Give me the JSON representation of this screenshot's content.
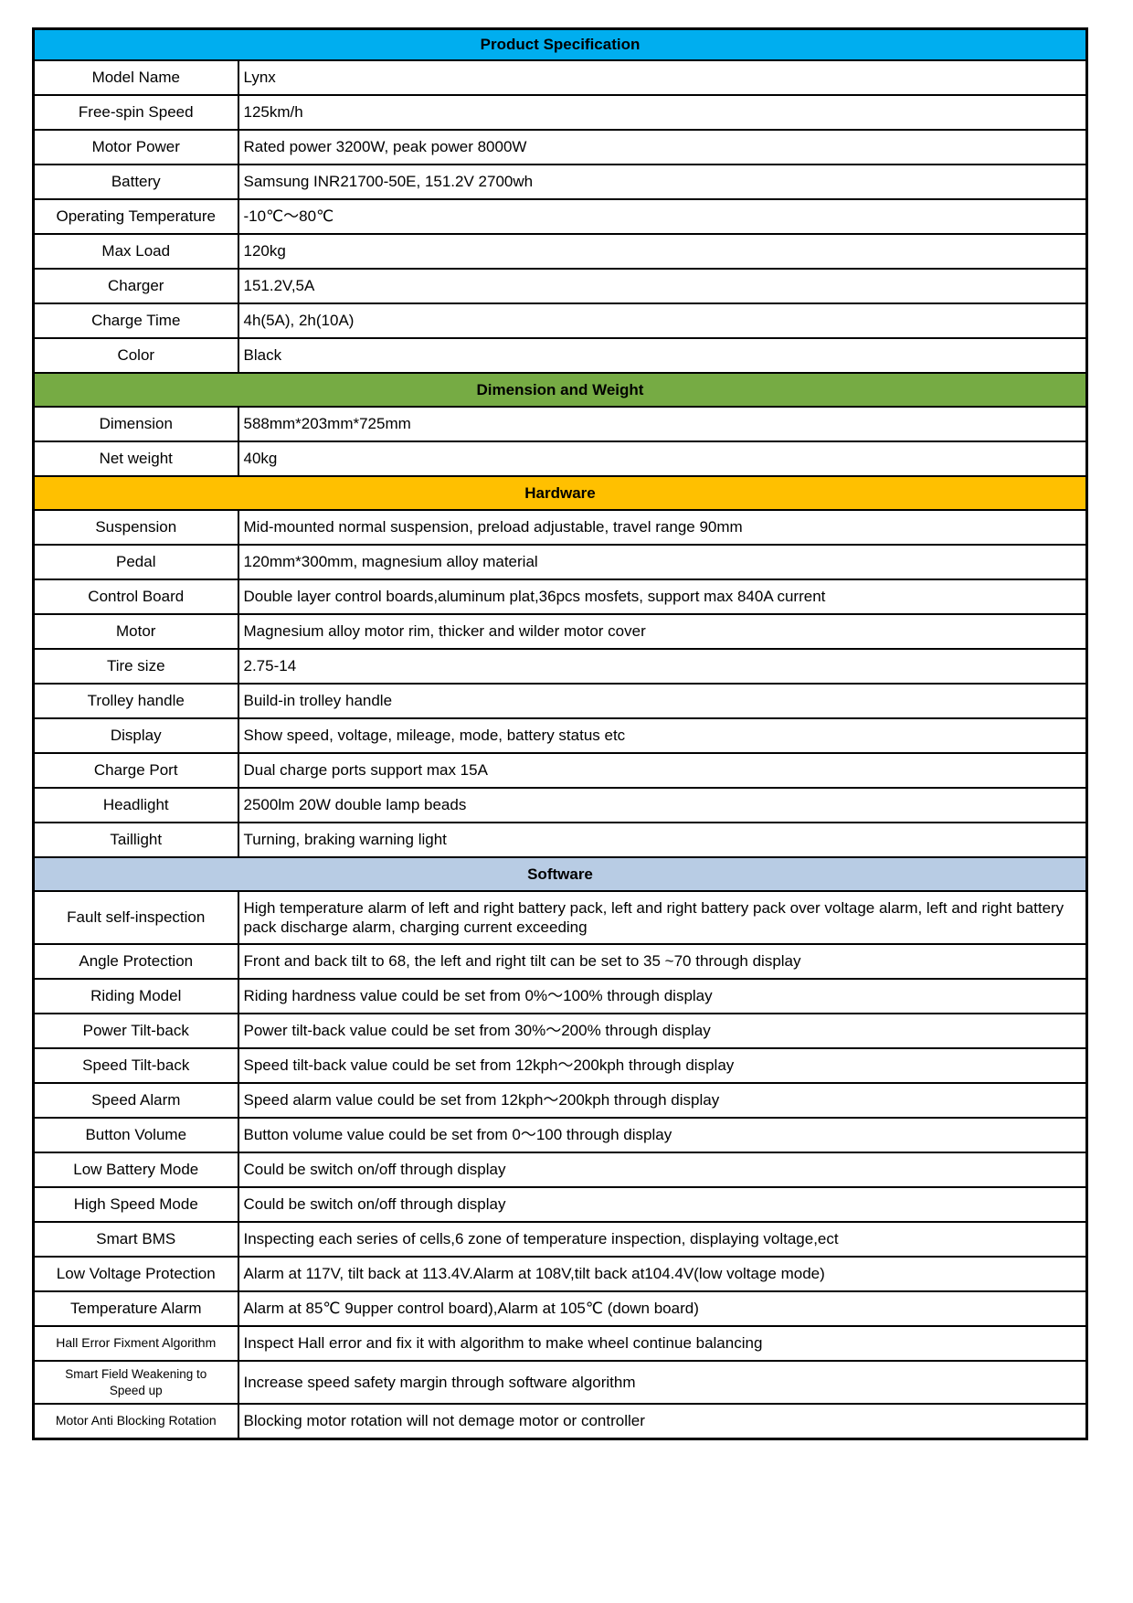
{
  "colors": {
    "title_bg": "#00AEEF",
    "dimension_bg": "#76AB44",
    "hardware_bg": "#FFC000",
    "software_bg": "#B8CCE4",
    "border": "#000000",
    "text": "#000000"
  },
  "table": {
    "title": "Product Specification",
    "basic_rows": [
      {
        "label": "Model Name",
        "value": "Lynx"
      },
      {
        "label": "Free-spin Speed",
        "value": "125km/h"
      },
      {
        "label": "Motor Power",
        "value": "Rated power 3200W, peak power 8000W"
      },
      {
        "label": "Battery",
        "value": "Samsung INR21700-50E, 151.2V 2700wh"
      },
      {
        "label": "Operating Temperature",
        "value": "-10℃～80℃"
      },
      {
        "label": "Max Load",
        "value": "120kg"
      },
      {
        "label": "Charger",
        "value": "151.2V,5A"
      },
      {
        "label": "Charge Time",
        "value": "4h(5A), 2h(10A)"
      },
      {
        "label": "Color",
        "value": "Black"
      }
    ],
    "dimension_header": "Dimension and Weight",
    "dimension_rows": [
      {
        "label": "Dimension",
        "value": "588mm*203mm*725mm"
      },
      {
        "label": "Net weight",
        "value": "40kg"
      }
    ],
    "hardware_header": "Hardware",
    "hardware_rows": [
      {
        "label": "Suspension",
        "value": "Mid-mounted normal suspension, preload adjustable, travel range 90mm"
      },
      {
        "label": "Pedal",
        "value": "120mm*300mm, magnesium alloy material"
      },
      {
        "label": "Control Board",
        "value": "Double layer control boards,aluminum plat,36pcs mosfets, support max 840A current"
      },
      {
        "label": "Motor",
        "value": "Magnesium alloy motor rim, thicker and wilder motor cover"
      },
      {
        "label": "Tire size",
        "value": "2.75-14"
      },
      {
        "label": "Trolley handle",
        "value": "Build-in trolley handle"
      },
      {
        "label": "Display",
        "value": "Show speed, voltage, mileage, mode, battery status etc"
      },
      {
        "label": "Charge Port",
        "value": "Dual charge ports support max 15A"
      },
      {
        "label": "Headlight",
        "value": "2500lm 20W double lamp beads"
      },
      {
        "label": "Taillight",
        "value": "Turning, braking warning light"
      }
    ],
    "software_header": "Software",
    "software_rows": [
      {
        "label": "Fault self-inspection",
        "value": "High temperature alarm of left and right battery pack, left and right battery pack over voltage alarm, left and right battery pack discharge alarm, charging current exceeding"
      },
      {
        "label": "Angle Protection",
        "value": "Front and back tilt to 68, the left and right tilt can be set to 35 ~70 through display"
      },
      {
        "label": "Riding Model",
        "value": "Riding hardness value could be set from 0%～100% through display"
      },
      {
        "label": "Power Tilt-back",
        "value": "Power tilt-back value could be set from 30%～200% through display"
      },
      {
        "label": "Speed Tilt-back",
        "value": "Speed tilt-back value could be set from 12kph～200kph through display"
      },
      {
        "label": "Speed Alarm",
        "value": "Speed alarm value could be set from 12kph～200kph through display"
      },
      {
        "label": "Button Volume",
        "value": "Button volume value could be set from 0～100 through display"
      },
      {
        "label": "Low Battery Mode",
        "value": "Could be switch on/off through display"
      },
      {
        "label": "High Speed Mode",
        "value": "Could be switch on/off through display"
      },
      {
        "label": "Smart BMS",
        "value": "Inspecting each series of cells,6 zone of temperature inspection, displaying voltage,ect"
      },
      {
        "label": "Low Voltage Protection",
        "value": "Alarm at 117V, tilt back at 113.4V.Alarm at 108V,tilt back at104.4V(low voltage mode)"
      },
      {
        "label": "Temperature Alarm",
        "value": "Alarm at 85℃ 9upper control board),Alarm at 105℃ (down board)"
      },
      {
        "label": "Hall Error Fixment Algorithm",
        "value": "Inspect Hall error and fix it with algorithm to make wheel continue balancing"
      },
      {
        "label": "Smart Field Weakening to Speed up",
        "value": "Increase speed safety margin through software algorithm"
      },
      {
        "label": "Motor Anti Blocking Rotation",
        "value": "Blocking motor rotation will not demage motor or controller"
      }
    ]
  }
}
